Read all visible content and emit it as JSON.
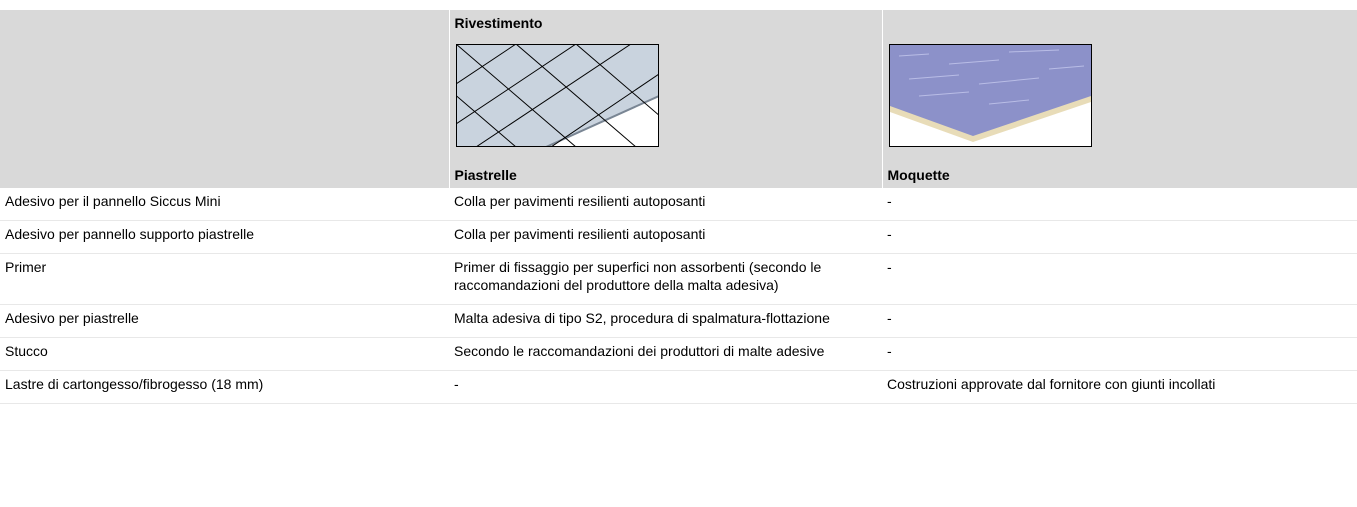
{
  "table": {
    "header": {
      "title": "Rivestimento"
    },
    "columns": [
      "Piastrelle",
      "Moquette"
    ],
    "rows": [
      [
        "Adesivo per il pannello Siccus Mini",
        "Colla per pavimenti resilienti autoposanti",
        "-"
      ],
      [
        "Adesivo per pannello supporto piastrelle",
        "Colla per pavimenti resilienti autoposanti",
        "-"
      ],
      [
        "Primer",
        "Primer di fissaggio per superfici non assorbenti (secondo le raccomandazioni del produttore della malta adesiva)",
        "-"
      ],
      [
        "Adesivo per piastrelle",
        "Malta adesiva di tipo S2, procedura di spalmatura-flottazione",
        "-"
      ],
      [
        "Stucco",
        "Secondo le raccomandazioni dei produttori di malte adesive",
        "-"
      ],
      [
        "Lastre di cartongesso/fibrogesso (18 mm)",
        "-",
        "Costruzioni approvate dal fornitore con giunti incollati"
      ]
    ]
  }
}
